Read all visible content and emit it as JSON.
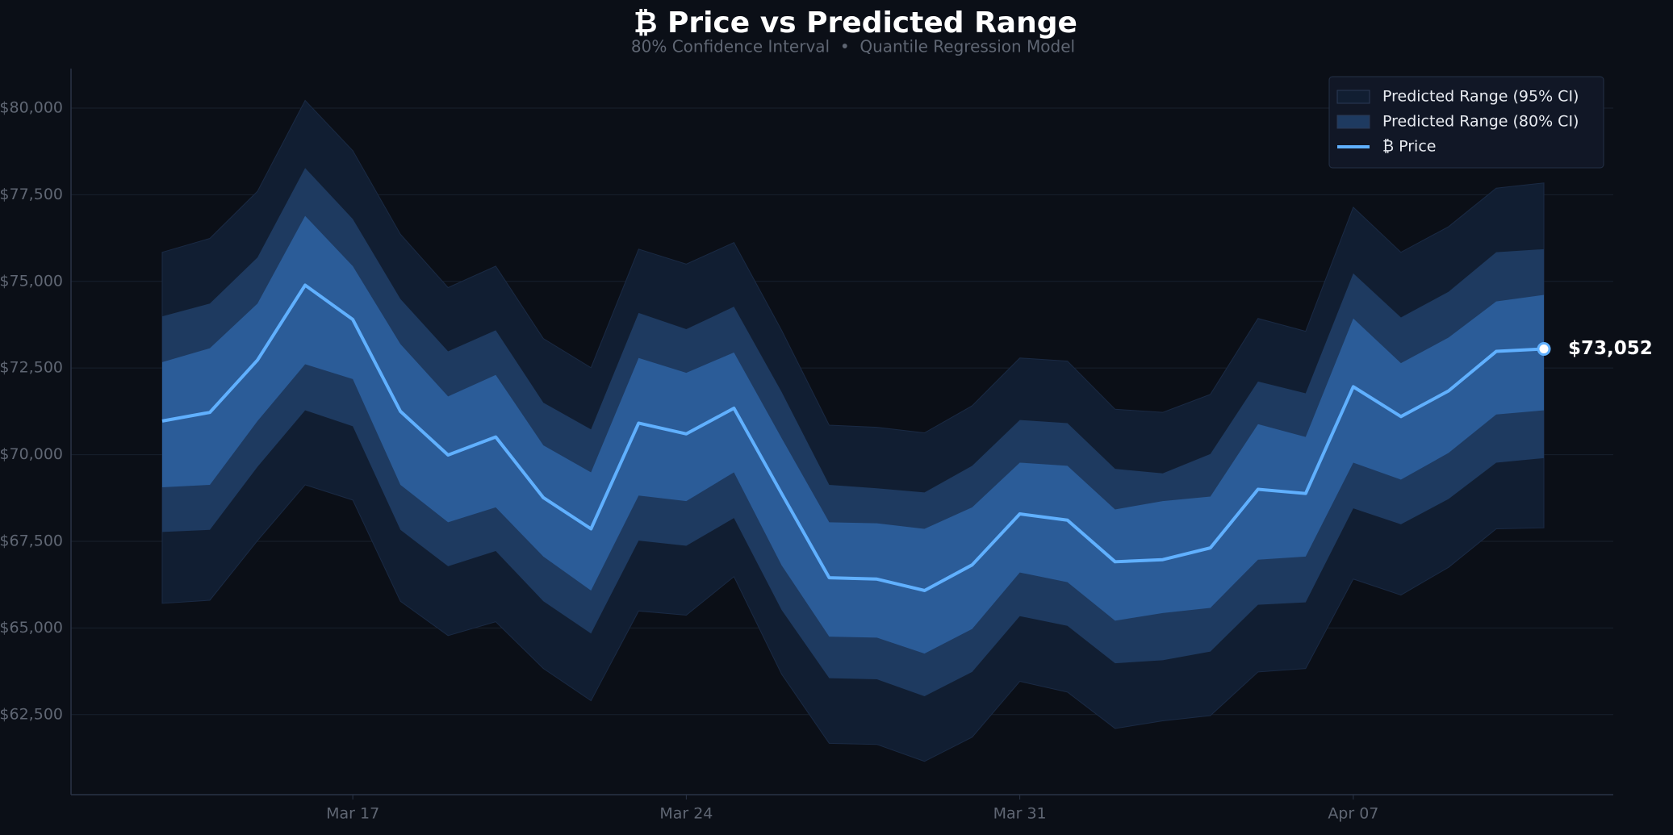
{
  "chart_data": {
    "type": "band-line",
    "title": "₿ Price vs Predicted Range",
    "subtitle": "80% Confidence Interval  •  Quantile Regression Model",
    "categories": [
      null,
      null,
      null,
      null,
      "Mar 17",
      null,
      null,
      null,
      null,
      null,
      null,
      "Mar 24",
      null,
      null,
      null,
      null,
      null,
      null,
      "Mar 31",
      null,
      null,
      null,
      null,
      null,
      null,
      "Apr 07",
      null,
      null,
      null,
      null
    ],
    "bands": [
      {
        "name": "Predicted Range (95% CI)",
        "color": "#111e32",
        "upper": [
          75840,
          76240,
          77600,
          80220,
          78770,
          76360,
          74820,
          75440,
          73350,
          72510,
          75930,
          75500,
          76120,
          73590,
          70850,
          70790,
          70630,
          71410,
          72790,
          72700,
          71310,
          71220,
          71740,
          73930,
          73560,
          77140,
          75840,
          76580,
          77690,
          77840
        ],
        "lower": [
          65710,
          65800,
          67520,
          69130,
          68690,
          65770,
          64780,
          65180,
          63830,
          62900,
          65490,
          65370,
          66480,
          63670,
          61670,
          61640,
          61150,
          61850,
          63460,
          63150,
          62100,
          62320,
          62470,
          63730,
          63830,
          66410,
          65950,
          66750,
          67860,
          67890
        ]
      },
      {
        "name": "Predicted Range (80% CI)",
        "color": "#1e3a60",
        "upper": [
          73990,
          74360,
          75690,
          78270,
          76800,
          74490,
          72980,
          73590,
          71500,
          70730,
          74090,
          73620,
          74270,
          71810,
          69130,
          69030,
          68910,
          69680,
          71000,
          70910,
          69590,
          69460,
          70020,
          72110,
          71770,
          75230,
          73960,
          74700,
          75840,
          75930
        ],
        "lower": [
          67770,
          67830,
          69650,
          71280,
          70820,
          67830,
          66780,
          67220,
          65770,
          64840,
          67520,
          67370,
          68170,
          65520,
          63550,
          63520,
          63030,
          63730,
          65340,
          65060,
          63980,
          64070,
          64320,
          65670,
          65740,
          68450,
          67990,
          68720,
          69770,
          69900
        ]
      },
      {
        "color": "#2b5c98",
        "upper": [
          72670,
          73070,
          74360,
          76890,
          75440,
          73190,
          71680,
          72300,
          70270,
          69490,
          72790,
          72360,
          72950,
          70480,
          68050,
          68020,
          67860,
          68480,
          69770,
          69680,
          68420,
          68660,
          68790,
          70880,
          70510,
          73930,
          72640,
          73380,
          74420,
          74610
        ],
        "lower": [
          69060,
          69130,
          70970,
          72610,
          72180,
          69130,
          68050,
          68480,
          67060,
          66080,
          68820,
          68660,
          69490,
          66810,
          64750,
          64720,
          64260,
          64970,
          66600,
          66320,
          65210,
          65430,
          65580,
          66970,
          67060,
          69770,
          69280,
          70050,
          71160,
          71280
        ]
      }
    ],
    "series": [
      {
        "name": "₿ Price",
        "color": "#60b0ff",
        "values": [
          70970,
          71220,
          72730,
          74890,
          73900,
          71250,
          69990,
          70510,
          68760,
          67860,
          70910,
          70600,
          71340,
          68880,
          66450,
          66410,
          66080,
          66820,
          68290,
          68110,
          66910,
          66970,
          67310,
          69000,
          68880,
          71960,
          71100,
          71840,
          72980,
          73052
        ],
        "end_label": "$73,052"
      }
    ],
    "ylim": [
      60190,
      81140
    ],
    "yticks": [
      {
        "value": 62500,
        "label": "$62,500"
      },
      {
        "value": 65000,
        "label": "$65,000"
      },
      {
        "value": 67500,
        "label": "$67,500"
      },
      {
        "value": 70000,
        "label": "$70,000"
      },
      {
        "value": 72500,
        "label": "$72,500"
      },
      {
        "value": 75000,
        "label": "$75,000"
      },
      {
        "value": 77500,
        "label": "$77,500"
      },
      {
        "value": 80000,
        "label": "$80,000"
      }
    ],
    "grid": true,
    "legend": "upper right"
  }
}
